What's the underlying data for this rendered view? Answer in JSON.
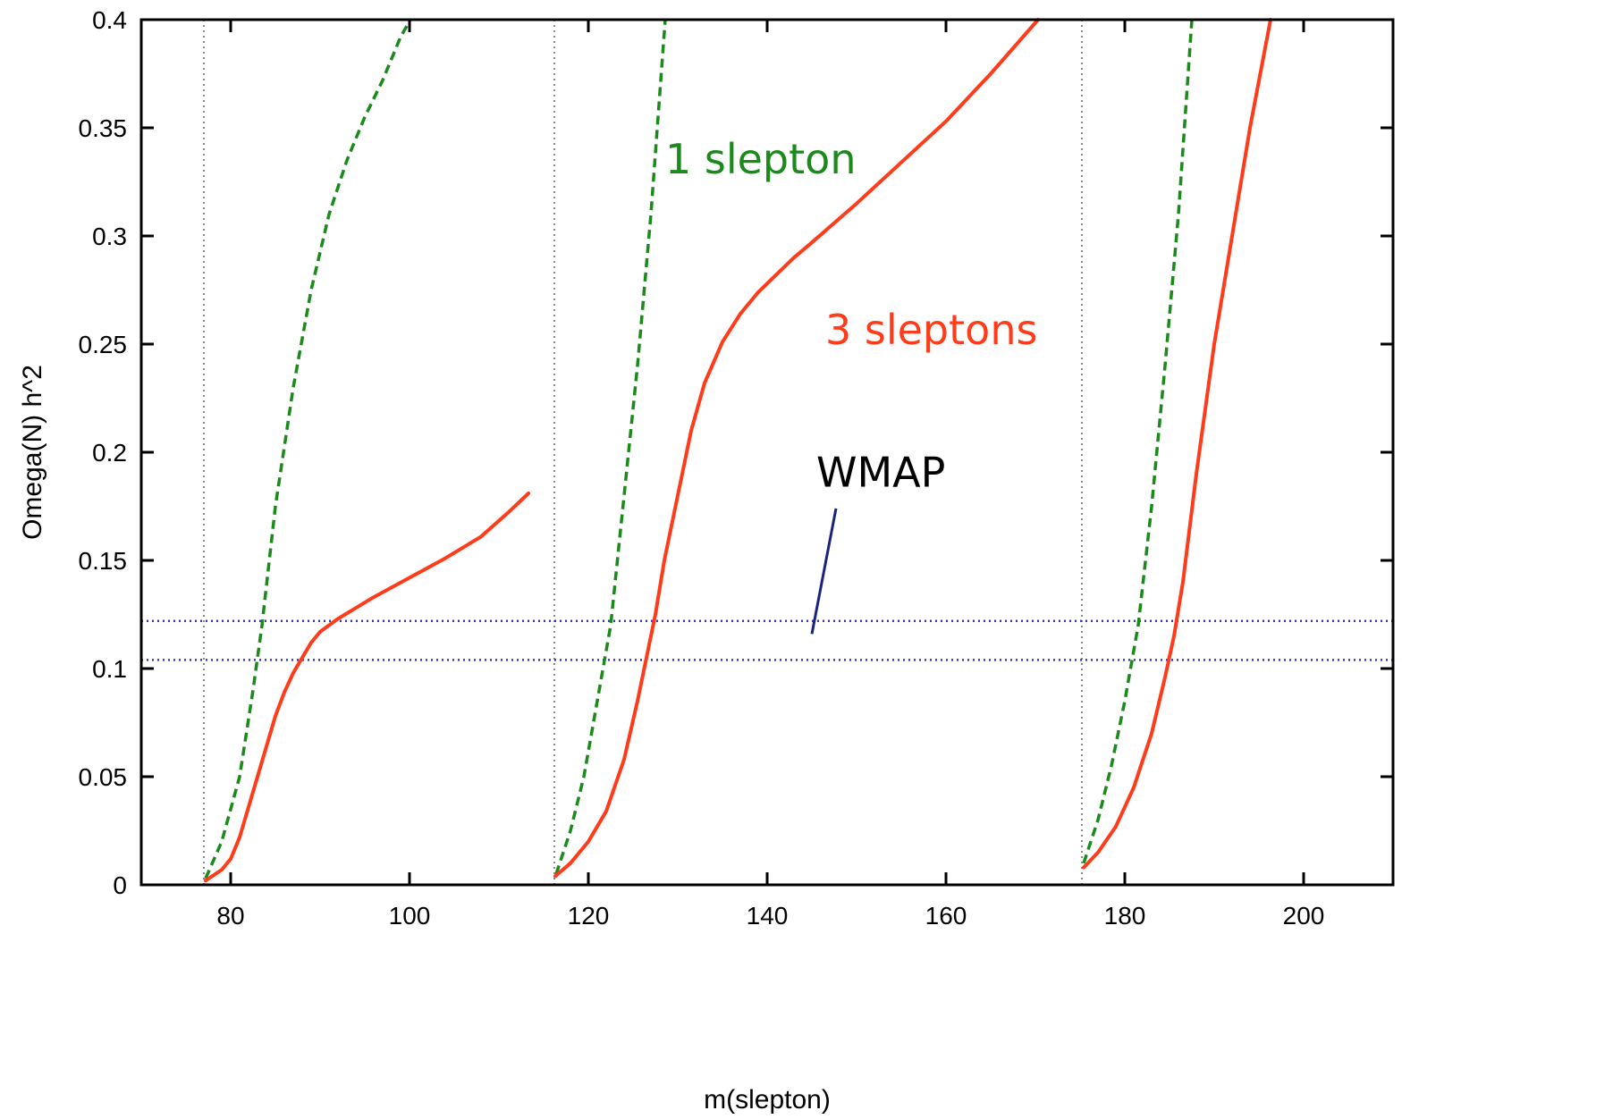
{
  "chart_data": {
    "type": "line",
    "xlabel": "m(slepton)",
    "ylabel": "Omega(N) h^2",
    "xlim": [
      70,
      210
    ],
    "ylim": [
      0,
      0.4
    ],
    "x_ticks": [
      80,
      100,
      120,
      140,
      160,
      180,
      200
    ],
    "y_ticks": [
      0,
      0.05,
      0.1,
      0.15,
      0.2,
      0.25,
      0.3,
      0.35,
      0.4
    ],
    "x_tick_labels": [
      "80",
      "100",
      "120",
      "140",
      "160",
      "180",
      "200"
    ],
    "y_tick_labels": [
      "0",
      "0.05",
      "0.1",
      "0.15",
      "0.2",
      "0.25",
      "0.3",
      "0.35",
      "0.4"
    ],
    "grid": false,
    "vertical_lines_x": [
      77,
      116.2,
      175.2
    ],
    "wmap_band": [
      0.104,
      0.122
    ],
    "colors": {
      "one_slepton": "#1a8a1a",
      "three_sleptons": "#ff3b1a",
      "wmap": "#1a237e",
      "vline": "#888888",
      "band": "#3a3ab0"
    },
    "series": [
      {
        "key": "one_slepton",
        "style": "dashed",
        "segments": [
          [
            [
              77.2,
              0.003
            ],
            [
              79,
              0.02
            ],
            [
              81,
              0.05
            ],
            [
              82.5,
              0.09
            ],
            [
              83.5,
              0.12
            ],
            [
              85,
              0.175
            ],
            [
              87,
              0.23
            ],
            [
              89,
              0.275
            ],
            [
              91,
              0.31
            ],
            [
              93,
              0.335
            ],
            [
              95,
              0.355
            ],
            [
              97,
              0.372
            ],
            [
              99,
              0.392
            ],
            [
              100.1,
              0.4
            ]
          ],
          [
            [
              116.4,
              0.005
            ],
            [
              118,
              0.025
            ],
            [
              119.5,
              0.05
            ],
            [
              121,
              0.085
            ],
            [
              122.5,
              0.12
            ],
            [
              124,
              0.18
            ],
            [
              125.5,
              0.24
            ],
            [
              127,
              0.31
            ],
            [
              128.6,
              0.4
            ]
          ],
          [
            [
              175.4,
              0.01
            ],
            [
              177,
              0.03
            ],
            [
              178.5,
              0.055
            ],
            [
              180,
              0.085
            ],
            [
              181.5,
              0.12
            ],
            [
              183,
              0.175
            ],
            [
              184.5,
              0.24
            ],
            [
              186,
              0.31
            ],
            [
              187.5,
              0.4
            ]
          ]
        ]
      },
      {
        "key": "three_sleptons",
        "style": "solid",
        "segments": [
          [
            [
              77.2,
              0.002
            ],
            [
              79,
              0.007
            ],
            [
              80,
              0.012
            ],
            [
              81,
              0.022
            ],
            [
              82,
              0.036
            ],
            [
              83,
              0.05
            ],
            [
              84,
              0.064
            ],
            [
              85,
              0.078
            ],
            [
              86,
              0.089
            ],
            [
              87,
              0.098
            ],
            [
              88,
              0.105
            ],
            [
              89,
              0.112
            ],
            [
              90,
              0.117
            ],
            [
              92,
              0.123
            ],
            [
              94,
              0.128
            ],
            [
              96,
              0.133
            ],
            [
              100,
              0.142
            ],
            [
              104,
              0.151
            ],
            [
              108,
              0.161
            ],
            [
              111,
              0.172
            ],
            [
              113.3,
              0.181
            ]
          ],
          [
            [
              116.3,
              0.004
            ],
            [
              118,
              0.01
            ],
            [
              120,
              0.02
            ],
            [
              122,
              0.034
            ],
            [
              124,
              0.058
            ],
            [
              125.5,
              0.085
            ],
            [
              126.5,
              0.105
            ],
            [
              127.5,
              0.125
            ],
            [
              128.5,
              0.15
            ],
            [
              130,
              0.18
            ],
            [
              131.5,
              0.21
            ],
            [
              133,
              0.232
            ],
            [
              135,
              0.251
            ],
            [
              137,
              0.264
            ],
            [
              139,
              0.274
            ],
            [
              141,
              0.282
            ],
            [
              143,
              0.29
            ],
            [
              145,
              0.297
            ],
            [
              150,
              0.315
            ],
            [
              155,
              0.334
            ],
            [
              160,
              0.353
            ],
            [
              165,
              0.375
            ],
            [
              170.3,
              0.4
            ]
          ],
          [
            [
              175.4,
              0.008
            ],
            [
              177,
              0.015
            ],
            [
              179,
              0.027
            ],
            [
              181,
              0.045
            ],
            [
              183,
              0.07
            ],
            [
              184.5,
              0.096
            ],
            [
              185.5,
              0.115
            ],
            [
              186.5,
              0.14
            ],
            [
              188,
              0.19
            ],
            [
              190,
              0.25
            ],
            [
              192,
              0.3
            ],
            [
              194,
              0.35
            ],
            [
              196.3,
              0.4
            ]
          ]
        ]
      }
    ],
    "annotations": {
      "one_slepton": "1 slepton",
      "three_sleptons": "3 sleptons",
      "wmap": "WMAP"
    }
  }
}
